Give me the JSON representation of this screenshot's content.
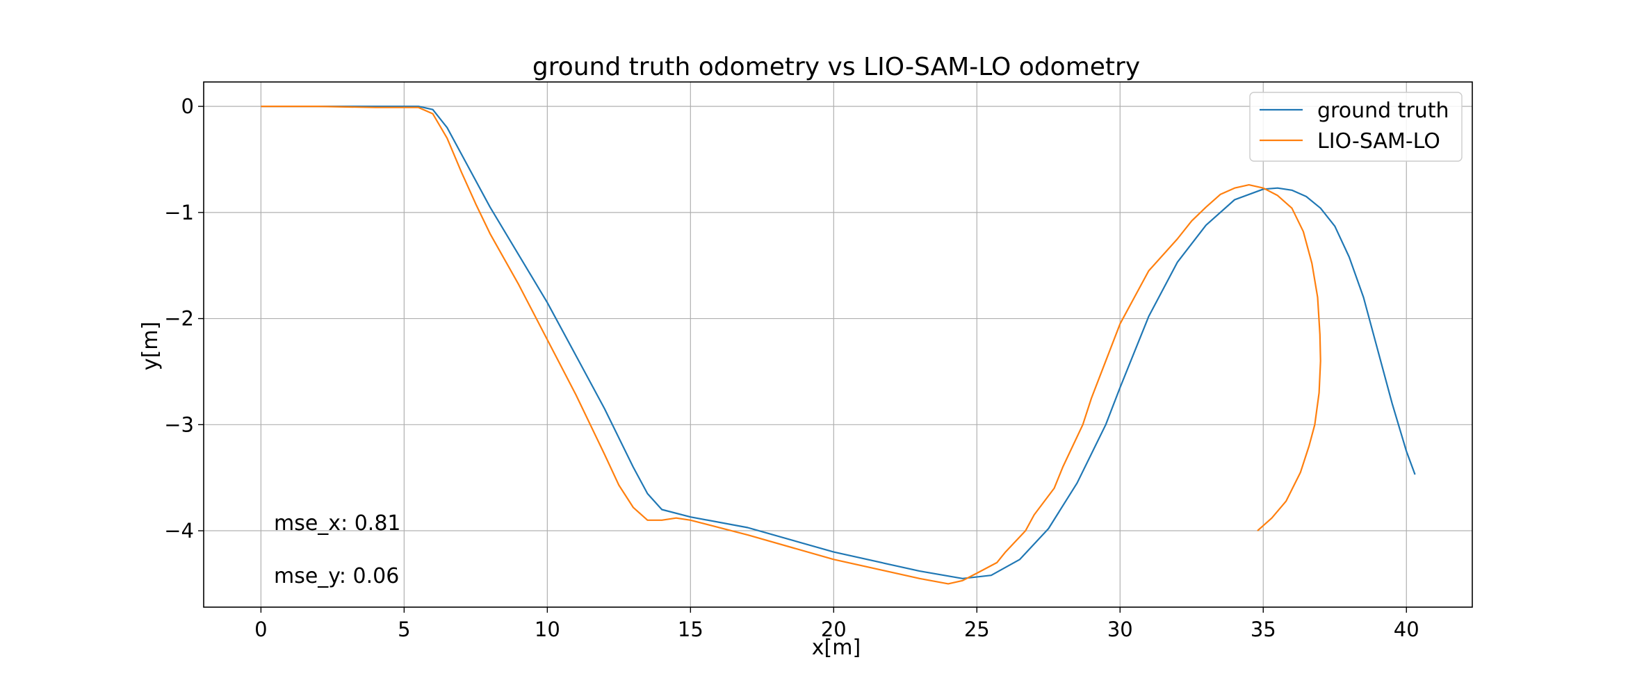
{
  "chart_data": {
    "type": "line",
    "title": "ground truth odometry vs LIO-SAM-LO odometry",
    "xlabel": "x[m]",
    "ylabel": "y[m]",
    "xlim": [
      -2,
      42.3
    ],
    "ylim": [
      -4.72,
      0.23
    ],
    "xticks": [
      0,
      5,
      10,
      15,
      20,
      25,
      30,
      35,
      40
    ],
    "yticks": [
      0,
      -1,
      -2,
      -3,
      -4
    ],
    "xtick_labels": [
      "0",
      "5",
      "10",
      "15",
      "20",
      "25",
      "30",
      "35",
      "40"
    ],
    "ytick_labels": [
      "0",
      "−1",
      "−2",
      "−3",
      "−4"
    ],
    "grid": true,
    "legend_position": "upper-right",
    "series": [
      {
        "name": "ground truth",
        "color": "#1f77b4",
        "points": [
          [
            0,
            0
          ],
          [
            2,
            0
          ],
          [
            4,
            0
          ],
          [
            5.5,
            0
          ],
          [
            6,
            -0.03
          ],
          [
            6.5,
            -0.2
          ],
          [
            7,
            -0.45
          ],
          [
            8,
            -0.95
          ],
          [
            9,
            -1.4
          ],
          [
            10,
            -1.85
          ],
          [
            11,
            -2.35
          ],
          [
            12,
            -2.85
          ],
          [
            13,
            -3.4
          ],
          [
            13.5,
            -3.65
          ],
          [
            14,
            -3.8
          ],
          [
            15,
            -3.87
          ],
          [
            17,
            -3.97
          ],
          [
            20,
            -4.2
          ],
          [
            23,
            -4.38
          ],
          [
            24.5,
            -4.45
          ],
          [
            25.5,
            -4.42
          ],
          [
            26.5,
            -4.27
          ],
          [
            27.5,
            -3.98
          ],
          [
            28.5,
            -3.55
          ],
          [
            29.5,
            -3
          ],
          [
            30,
            -2.65
          ],
          [
            31,
            -1.98
          ],
          [
            32,
            -1.47
          ],
          [
            33,
            -1.12
          ],
          [
            34,
            -0.88
          ],
          [
            35,
            -0.78
          ],
          [
            35.5,
            -0.77
          ],
          [
            36,
            -0.79
          ],
          [
            36.5,
            -0.85
          ],
          [
            37,
            -0.96
          ],
          [
            37.5,
            -1.13
          ],
          [
            38,
            -1.42
          ],
          [
            38.5,
            -1.8
          ],
          [
            39,
            -2.3
          ],
          [
            39.5,
            -2.8
          ],
          [
            40,
            -3.25
          ],
          [
            40.3,
            -3.47
          ]
        ]
      },
      {
        "name": "LIO-SAM-LO",
        "color": "#ff7f0e",
        "points": [
          [
            0,
            0
          ],
          [
            2,
            0
          ],
          [
            4,
            -0.01
          ],
          [
            5.5,
            -0.01
          ],
          [
            6,
            -0.07
          ],
          [
            6.5,
            -0.3
          ],
          [
            7,
            -0.62
          ],
          [
            7.5,
            -0.92
          ],
          [
            8,
            -1.2
          ],
          [
            9,
            -1.68
          ],
          [
            10,
            -2.2
          ],
          [
            11,
            -2.72
          ],
          [
            12,
            -3.28
          ],
          [
            12.5,
            -3.57
          ],
          [
            13,
            -3.78
          ],
          [
            13.5,
            -3.9
          ],
          [
            14,
            -3.9
          ],
          [
            14.5,
            -3.88
          ],
          [
            15,
            -3.9
          ],
          [
            17,
            -4.04
          ],
          [
            20,
            -4.27
          ],
          [
            23,
            -4.45
          ],
          [
            24,
            -4.5
          ],
          [
            24.5,
            -4.47
          ],
          [
            25,
            -4.4
          ],
          [
            25.7,
            -4.3
          ],
          [
            26,
            -4.2
          ],
          [
            26.7,
            -4.0
          ],
          [
            27,
            -3.85
          ],
          [
            27.7,
            -3.6
          ],
          [
            28,
            -3.4
          ],
          [
            28.7,
            -3.0
          ],
          [
            29,
            -2.75
          ],
          [
            29.5,
            -2.4
          ],
          [
            30,
            -2.05
          ],
          [
            30.5,
            -1.8
          ],
          [
            31,
            -1.55
          ],
          [
            32,
            -1.25
          ],
          [
            32.5,
            -1.08
          ],
          [
            33,
            -0.95
          ],
          [
            33.5,
            -0.83
          ],
          [
            34,
            -0.77
          ],
          [
            34.5,
            -0.74
          ],
          [
            35,
            -0.77
          ],
          [
            35.5,
            -0.84
          ],
          [
            36,
            -0.96
          ],
          [
            36.4,
            -1.18
          ],
          [
            36.7,
            -1.48
          ],
          [
            36.9,
            -1.8
          ],
          [
            36.98,
            -2.15
          ],
          [
            37,
            -2.4
          ],
          [
            36.95,
            -2.7
          ],
          [
            36.8,
            -3.0
          ],
          [
            36.6,
            -3.2
          ],
          [
            36.3,
            -3.45
          ],
          [
            35.8,
            -3.72
          ],
          [
            35.3,
            -3.88
          ],
          [
            34.8,
            -4.0
          ]
        ]
      }
    ],
    "annotations": [
      "mse_x: 0.81",
      "mse_y: 0.06"
    ]
  }
}
